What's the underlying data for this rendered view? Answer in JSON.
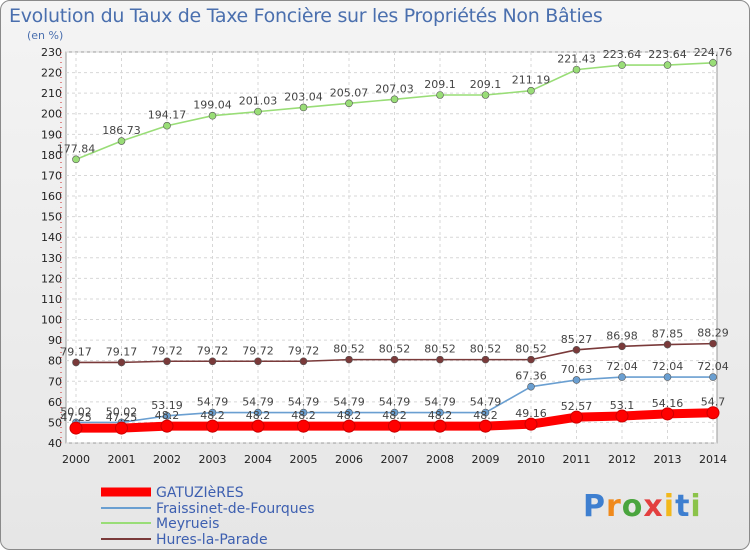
{
  "header": {
    "title": "Evolution du Taux de Taxe Foncière sur les Propriétés Non Bâties",
    "unit": "(en %)"
  },
  "logo": {
    "text": "Proxiti"
  },
  "chart_data": {
    "type": "line",
    "title": "Evolution du Taux de Taxe Foncière sur les Propriétés Non Bâties",
    "ylabel": "(en %)",
    "xlabel": "",
    "ylim": [
      40,
      230
    ],
    "yticks": [
      40,
      50,
      60,
      70,
      80,
      90,
      100,
      110,
      120,
      130,
      140,
      150,
      160,
      170,
      180,
      190,
      200,
      210,
      220,
      230
    ],
    "grid": true,
    "legend_position": "bottom-left",
    "categories": [
      "2000",
      "2001",
      "2002",
      "2003",
      "2004",
      "2005",
      "2006",
      "2007",
      "2008",
      "2009",
      "2010",
      "2011",
      "2012",
      "2013",
      "2014"
    ],
    "series": [
      {
        "name": "GATUZIèRES",
        "color": "#ff0000",
        "values": [
          47.25,
          47.25,
          48.2,
          48.2,
          48.2,
          48.2,
          48.2,
          48.2,
          48.2,
          48.2,
          49.16,
          52.57,
          53.1,
          54.16,
          54.7
        ],
        "labels": [
          "47.25",
          "47.25",
          "48.2",
          "48.2",
          "48.2",
          "48.2",
          "48.2",
          "48.2",
          "48.2",
          "48.2",
          "49.16",
          "52.57",
          "53.1",
          "54.16",
          "54.7"
        ]
      },
      {
        "name": "Fraissinet-de-Fourques",
        "color": "#6a9fd1",
        "values": [
          50.02,
          50.02,
          53.19,
          54.79,
          54.79,
          54.79,
          54.79,
          54.79,
          54.79,
          54.79,
          67.36,
          70.63,
          72.04,
          72.04,
          72.04
        ],
        "labels": [
          "50.02",
          "50.02",
          "53.19",
          "54.79",
          "54.79",
          "54.79",
          "54.79",
          "54.79",
          "54.79",
          "54.79",
          "67.36",
          "70.63",
          "72.04",
          "72.04",
          "72.04"
        ]
      },
      {
        "name": "Meyrueis",
        "color": "#99dd77",
        "values": [
          177.84,
          186.73,
          194.17,
          199.04,
          201.03,
          203.04,
          205.07,
          207.03,
          209.1,
          209.1,
          211.19,
          221.43,
          223.64,
          223.64,
          224.76
        ],
        "labels": [
          "177.84",
          "186.73",
          "194.17",
          "199.04",
          "201.03",
          "203.04",
          "205.07",
          "207.03",
          "209.1",
          "209.1",
          "211.19",
          "221.43",
          "223.64",
          "223.64",
          "224.76"
        ]
      },
      {
        "name": "Hures-la-Parade",
        "color": "#7a3a3a",
        "values": [
          79.17,
          79.17,
          79.72,
          79.72,
          79.72,
          79.72,
          80.52,
          80.52,
          80.52,
          80.52,
          80.52,
          85.27,
          86.98,
          87.85,
          88.29
        ],
        "labels": [
          "79.17",
          "79.17",
          "79.72",
          "79.72",
          "79.72",
          "79.72",
          "80.52",
          "80.52",
          "80.52",
          "80.52",
          "80.52",
          "85.27",
          "86.98",
          "87.85",
          "88.29"
        ]
      }
    ]
  }
}
